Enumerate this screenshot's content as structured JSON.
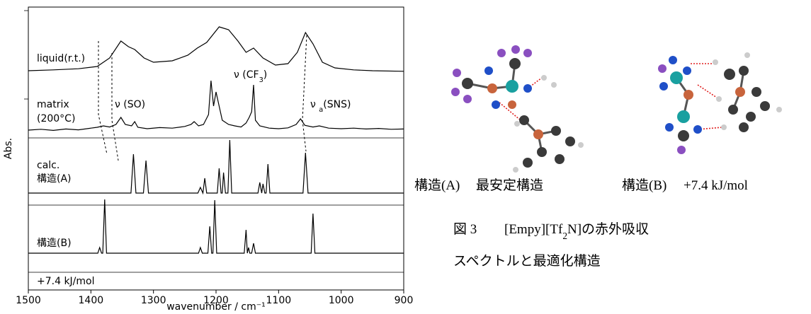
{
  "chart_data": {
    "type": "line",
    "xlabel": "wavenumber / cm⁻¹",
    "ylabel": "Abs.",
    "xlim": [
      1500,
      900
    ],
    "xticks": [
      1500,
      1400,
      1300,
      1200,
      1100,
      1000,
      900
    ],
    "ylim": [
      0,
      100
    ],
    "series": [
      {
        "name_lines": [
          "liquid(r.t.)"
        ],
        "color": "#000000",
        "x": [
          1500,
          1460,
          1420,
          1390,
          1370,
          1352,
          1340,
          1330,
          1315,
          1300,
          1270,
          1245,
          1230,
          1215,
          1195,
          1180,
          1165,
          1152,
          1140,
          1125,
          1105,
          1085,
          1070,
          1057,
          1045,
          1030,
          1010,
          980,
          950,
          900
        ],
        "values": [
          77.5,
          77.8,
          78.2,
          79,
          82,
          88,
          86,
          85,
          82,
          80.5,
          81,
          83,
          85.5,
          87.5,
          93,
          92,
          88,
          84,
          85.5,
          82,
          79.5,
          80,
          84,
          91,
          87,
          80.5,
          78.5,
          77.8,
          77.5,
          77.3
        ]
      },
      {
        "name_lines": [
          "matrix",
          "(200°C)"
        ],
        "color": "#000000",
        "x": [
          1500,
          1480,
          1460,
          1440,
          1420,
          1400,
          1390,
          1380,
          1370,
          1360,
          1352,
          1345,
          1335,
          1330,
          1325,
          1310,
          1290,
          1270,
          1250,
          1240,
          1235,
          1228,
          1220,
          1212,
          1208,
          1204,
          1200,
          1196,
          1190,
          1180,
          1170,
          1160,
          1152,
          1147,
          1143,
          1140,
          1137,
          1130,
          1115,
          1100,
          1085,
          1072,
          1065,
          1058,
          1045,
          1035,
          1020,
          1000,
          980,
          960,
          940,
          920,
          900
        ],
        "values": [
          56.5,
          56.8,
          56.4,
          56.9,
          56.6,
          57.2,
          57.5,
          58,
          57.6,
          58.5,
          61,
          58.5,
          58,
          59.5,
          57.5,
          57,
          57.4,
          57.2,
          57.8,
          58.5,
          59.5,
          58,
          58.5,
          62,
          74,
          65,
          70,
          66,
          60,
          58.5,
          58,
          57.6,
          59,
          61,
          63,
          72.5,
          60,
          58,
          57.2,
          57,
          57.3,
          58.5,
          60.5,
          58.2,
          57.6,
          58,
          57.2,
          57,
          57.2,
          56.9,
          57.1,
          56.8,
          56.9
        ]
      },
      {
        "name_lines": [
          "calc.",
          "構造(A)"
        ],
        "color": "#000000",
        "x": [
          1500,
          1336,
          1332,
          1328,
          1316,
          1312,
          1308,
          1229,
          1225,
          1221,
          1218,
          1215,
          1198,
          1195,
          1192,
          1190,
          1188,
          1185,
          1181,
          1178,
          1175,
          1133,
          1130,
          1127,
          1125,
          1122,
          1120,
          1117,
          1114,
          1061,
          1057,
          1053,
          900
        ],
        "values": [
          34.25,
          34.25,
          48,
          34.25,
          34.25,
          45.75,
          34.25,
          34.25,
          36.25,
          34.25,
          39.5,
          34.25,
          34.25,
          43,
          34.25,
          34.25,
          41.5,
          34.25,
          34.25,
          53,
          34.25,
          34.25,
          38,
          34.25,
          37.5,
          34.25,
          34.25,
          44.5,
          34.25,
          34.25,
          48.5,
          34.25,
          34.25
        ]
      },
      {
        "name_lines": [
          "構造(B)",
          "+7.4 kJ/mol"
        ],
        "color": "#000000",
        "x": [
          1500,
          1389,
          1386,
          1383,
          1381,
          1378,
          1375,
          1228,
          1225,
          1222,
          1213,
          1210,
          1207,
          1205,
          1202,
          1199,
          1155,
          1152,
          1150,
          1148,
          1146,
          1143,
          1140,
          1137,
          1048,
          1045,
          1042,
          900
        ],
        "values": [
          13,
          13,
          15,
          13,
          13,
          32,
          13,
          13,
          15,
          13,
          13,
          22.5,
          13,
          13,
          31.75,
          13,
          13,
          21.25,
          13,
          15,
          13,
          13,
          16.5,
          13,
          13,
          27,
          13,
          13
        ]
      }
    ],
    "annotations": [
      [
        "ν (SO)"
      ],
      [
        "ν (CF",
        "3",
        ")"
      ],
      [
        "ν ",
        "a",
        "(SNS)"
      ]
    ]
  },
  "structures": [
    {
      "label": "構造(A)",
      "note": "最安定構造"
    },
    {
      "label": "構造(B)",
      "note": "+7.4 kJ/mol"
    }
  ],
  "caption": {
    "number": "図 3",
    "line1": [
      "[Empy][Tf",
      "2",
      "N]の赤外吸収"
    ],
    "line2": "スペクトルと最適化構造"
  }
}
